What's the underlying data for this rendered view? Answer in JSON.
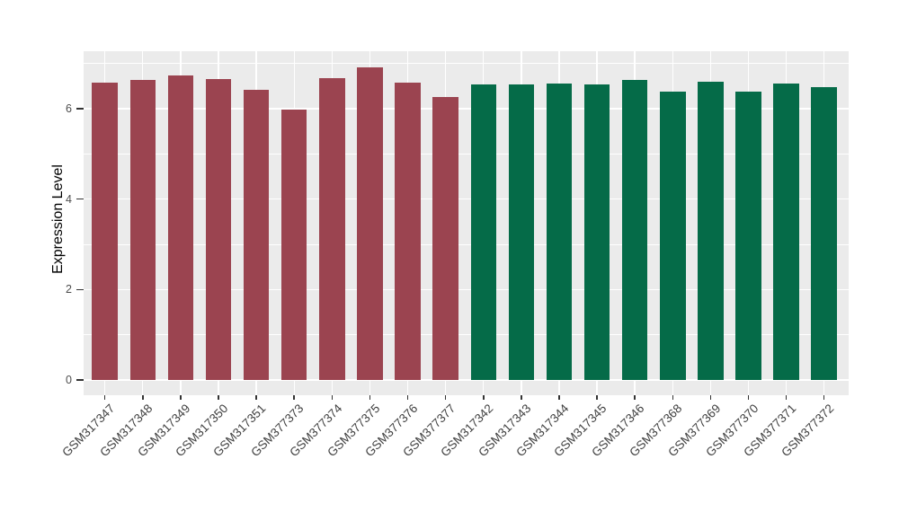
{
  "chart_data": {
    "type": "bar",
    "title": "",
    "xlabel": "",
    "ylabel": "Expression Level",
    "ylim": [
      0,
      7.26
    ],
    "yticks": [
      0,
      2,
      4,
      6
    ],
    "grid": "on",
    "legend": "none",
    "panel_background": "#EBEBEB",
    "grid_color": "#FFFFFF",
    "axis_text_color": "#4D4D4D",
    "categories": [
      "GSM317347",
      "GSM317348",
      "GSM317349",
      "GSM317350",
      "GSM317351",
      "GSM377373",
      "GSM377374",
      "GSM377375",
      "GSM377376",
      "GSM377377",
      "GSM317342",
      "GSM317343",
      "GSM317344",
      "GSM317345",
      "GSM317346",
      "GSM377368",
      "GSM377369",
      "GSM377370",
      "GSM377371",
      "GSM377372"
    ],
    "series": [
      {
        "name": "Expression Level",
        "values": [
          6.57,
          6.63,
          6.73,
          6.65,
          6.41,
          5.97,
          6.67,
          6.92,
          6.57,
          6.25,
          6.53,
          6.53,
          6.55,
          6.53,
          6.63,
          6.37,
          6.59,
          6.37,
          6.55,
          6.47
        ]
      }
    ],
    "bar_colors": [
      "#9B4450",
      "#9B4450",
      "#9B4450",
      "#9B4450",
      "#9B4450",
      "#9B4450",
      "#9B4450",
      "#9B4450",
      "#9B4450",
      "#9B4450",
      "#056B48",
      "#056B48",
      "#056B48",
      "#056B48",
      "#056B48",
      "#056B48",
      "#056B48",
      "#056B48",
      "#056B48",
      "#056B48"
    ],
    "color_groups": [
      {
        "color": "#9B4450",
        "first_index": 0,
        "count": 10
      },
      {
        "color": "#056B48",
        "first_index": 10,
        "count": 10
      }
    ]
  }
}
